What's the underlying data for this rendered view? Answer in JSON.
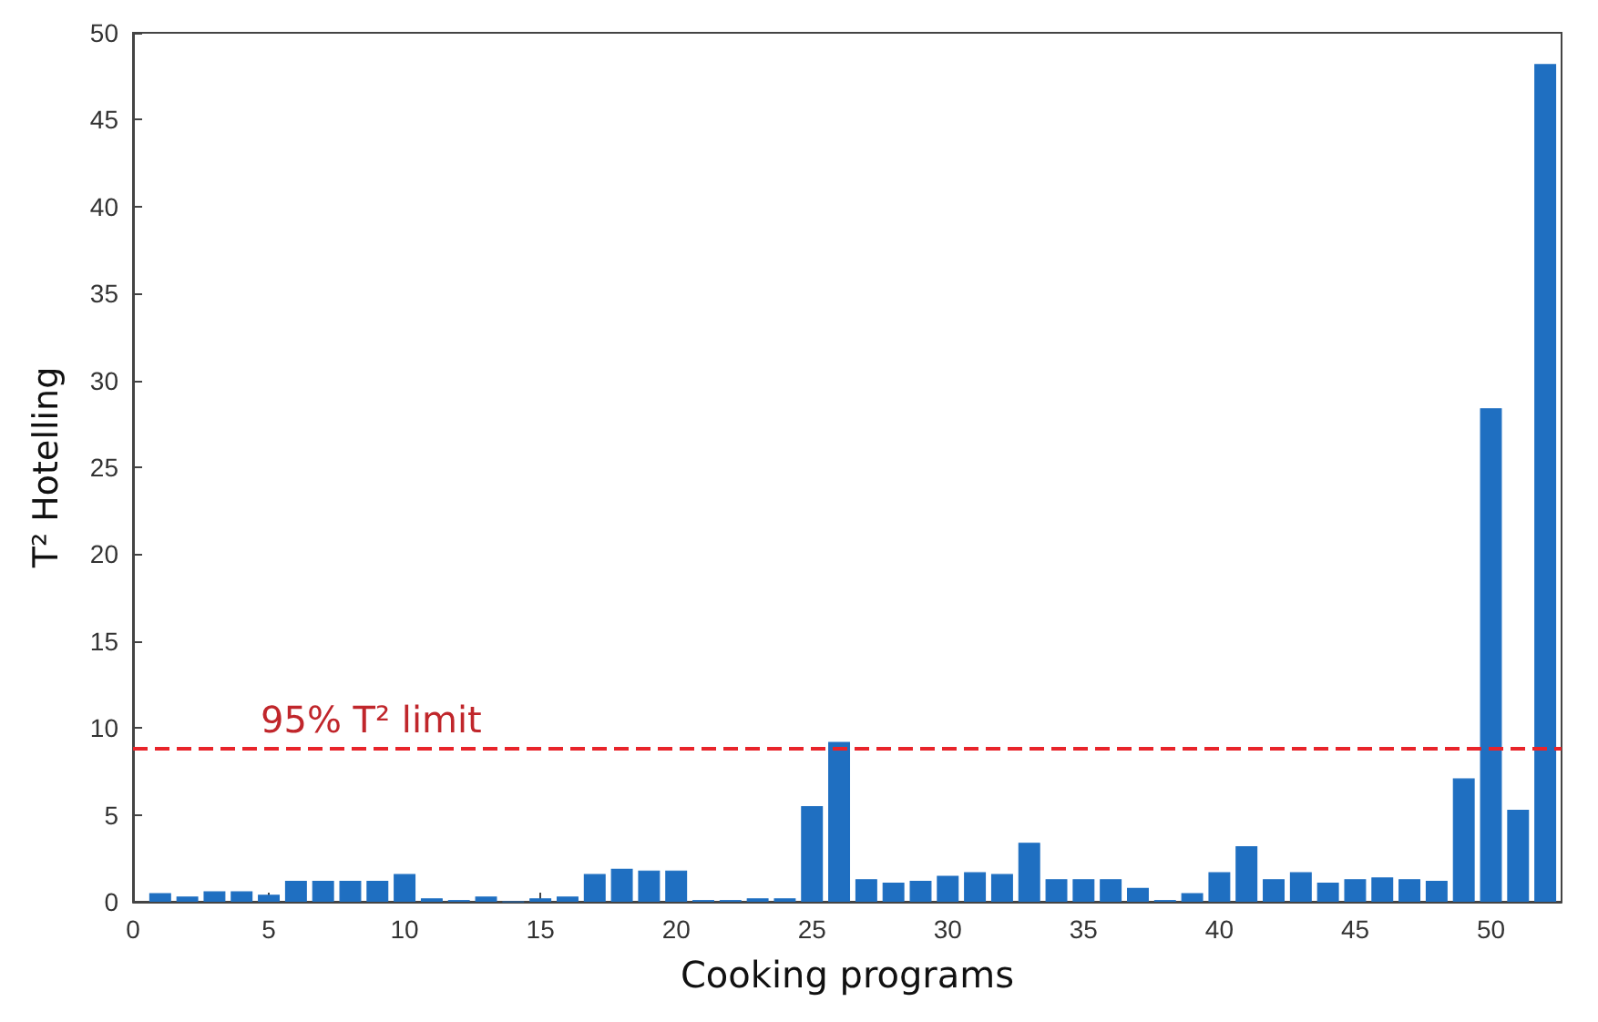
{
  "chart_data": {
    "type": "bar",
    "xlabel": "Cooking programs",
    "ylabel": "T² Hotelling",
    "x": [
      1,
      2,
      3,
      4,
      5,
      6,
      7,
      8,
      9,
      10,
      11,
      12,
      13,
      14,
      15,
      16,
      17,
      18,
      19,
      20,
      21,
      22,
      23,
      24,
      25,
      26,
      27,
      28,
      29,
      30,
      31,
      32,
      33,
      34,
      35,
      36,
      37,
      38,
      39,
      40,
      41,
      42,
      43,
      44,
      45,
      46,
      47,
      48,
      49,
      50,
      51,
      52
    ],
    "series": [
      {
        "color": "#1f6fc1",
        "values": [
          0.5,
          0.3,
          0.6,
          0.6,
          0.4,
          1.2,
          1.2,
          1.2,
          1.2,
          1.6,
          0.2,
          0.1,
          0.3,
          0,
          0.2,
          0.3,
          1.6,
          1.9,
          1.8,
          1.8,
          0.1,
          0.1,
          0.2,
          0.2,
          5.5,
          9.2,
          1.3,
          1.1,
          1.2,
          1.5,
          1.7,
          1.6,
          3.4,
          1.3,
          1.3,
          1.3,
          0.8,
          0.1,
          0.5,
          1.7,
          3.2,
          1.3,
          1.7,
          1.1,
          1.3,
          1.4,
          1.3,
          1.2,
          7.1,
          28.4,
          5.3,
          48.2
        ]
      }
    ],
    "xlim": [
      0,
      52.6
    ],
    "xticks": [
      0,
      5,
      10,
      15,
      20,
      25,
      30,
      35,
      40,
      45,
      50
    ],
    "ylim": [
      0,
      50
    ],
    "yticks": [
      0,
      5,
      10,
      15,
      20,
      25,
      30,
      35,
      40,
      45,
      50
    ],
    "ref_lines": [
      {
        "axis": "y",
        "value": 8.8,
        "label": "95% T² limit",
        "color": "#e8242a",
        "line_style": "dashed"
      }
    ],
    "grid": false
  }
}
